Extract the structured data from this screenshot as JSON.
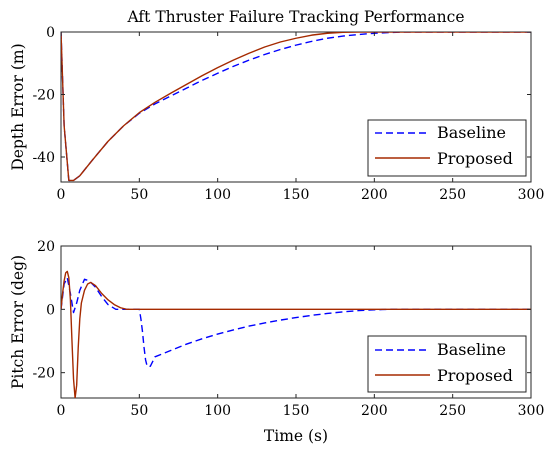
{
  "chart_data": [
    {
      "type": "line",
      "title": "Aft Thruster Failure Tracking Performance",
      "xlabel": "",
      "ylabel": "Depth Error (m)",
      "xlim": [
        0,
        300
      ],
      "ylim": [
        -48,
        0
      ],
      "xticks": [
        "0",
        "50",
        "100",
        "150",
        "200",
        "250",
        "300"
      ],
      "yticks": [
        "0",
        "-20",
        "-40"
      ],
      "legend_position": "bottom-right",
      "series": [
        {
          "name": "Baseline",
          "color": "#0000ff",
          "style": "dashed",
          "x": [
            0,
            2,
            5,
            8,
            12,
            20,
            30,
            40,
            50,
            60,
            70,
            80,
            90,
            100,
            110,
            120,
            130,
            140,
            150,
            160,
            170,
            180,
            190,
            200,
            210,
            220,
            230,
            250,
            300
          ],
          "y": [
            0,
            -30,
            -47.5,
            -47.5,
            -46,
            -41,
            -35,
            -30,
            -26,
            -23,
            -20.5,
            -18,
            -15.5,
            -13.2,
            -11,
            -9,
            -7.2,
            -5.6,
            -4.2,
            -3,
            -2,
            -1.3,
            -0.8,
            -0.4,
            -0.15,
            0,
            0,
            0,
            0
          ]
        },
        {
          "name": "Proposed",
          "color": "#a52a00",
          "style": "solid",
          "x": [
            0,
            2,
            5,
            8,
            12,
            20,
            30,
            40,
            50,
            60,
            70,
            80,
            90,
            100,
            110,
            120,
            130,
            140,
            150,
            160,
            170,
            180,
            190,
            200,
            250,
            300
          ],
          "y": [
            0,
            -30,
            -47.5,
            -47.5,
            -46,
            -41,
            -35,
            -30,
            -25.8,
            -22.5,
            -19.6,
            -16.8,
            -14,
            -11.4,
            -9,
            -6.8,
            -4.8,
            -3.2,
            -2,
            -1,
            -0.4,
            -0.1,
            0,
            0,
            0,
            0
          ]
        }
      ]
    },
    {
      "type": "line",
      "title": "",
      "xlabel": "Time (s)",
      "ylabel": "Pitch Error (deg)",
      "xlim": [
        0,
        300
      ],
      "ylim": [
        -28,
        20
      ],
      "xticks": [
        "0",
        "50",
        "100",
        "150",
        "200",
        "250",
        "300"
      ],
      "yticks": [
        "20",
        "0",
        "-20"
      ],
      "legend_position": "bottom-right",
      "series": [
        {
          "name": "Baseline",
          "color": "#0000ff",
          "style": "dashed",
          "x": [
            0,
            2,
            4,
            6,
            8,
            10,
            12,
            15,
            18,
            22,
            26,
            30,
            35,
            40,
            45,
            50,
            51,
            52,
            53,
            54,
            55,
            57,
            60,
            70,
            80,
            90,
            100,
            110,
            120,
            130,
            140,
            150,
            160,
            170,
            180,
            190,
            200,
            210,
            230,
            300
          ],
          "y": [
            0,
            8,
            10,
            5,
            -1,
            2,
            6,
            9.5,
            9,
            7,
            4,
            1.5,
            0,
            0,
            0,
            0,
            -3,
            -7,
            -12,
            -16,
            -18,
            -18,
            -15,
            -13,
            -11,
            -9.3,
            -7.8,
            -6.5,
            -5.3,
            -4.3,
            -3.4,
            -2.6,
            -1.9,
            -1.3,
            -0.8,
            -0.4,
            -0.15,
            0,
            0,
            0
          ]
        },
        {
          "name": "Proposed",
          "color": "#a52a00",
          "style": "solid",
          "x": [
            0,
            1,
            2,
            3,
            4,
            5,
            6,
            7,
            8,
            9,
            10,
            11,
            12,
            13,
            15,
            17,
            19,
            22,
            26,
            30,
            34,
            38,
            42,
            50,
            52,
            60,
            100,
            300
          ],
          "y": [
            0,
            5,
            9,
            11.5,
            12,
            10,
            3,
            -10,
            -22,
            -28,
            -24,
            -12,
            -3,
            2,
            6,
            8,
            8.5,
            7.5,
            5,
            3,
            1.5,
            0.5,
            0,
            0,
            0,
            0,
            0,
            0
          ]
        }
      ]
    }
  ]
}
